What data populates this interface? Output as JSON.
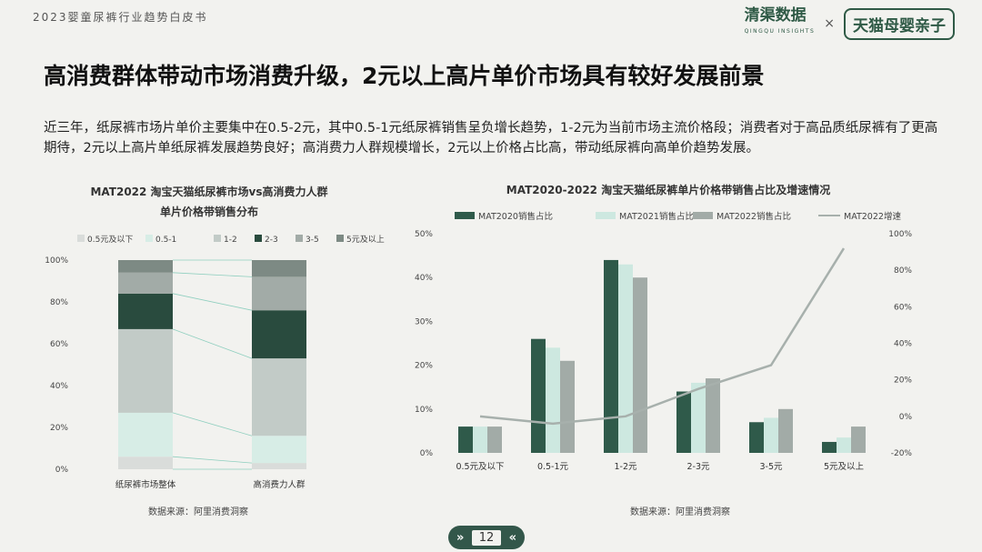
{
  "header": {
    "report_tag": "2023婴童尿裤行业趋势白皮书",
    "brand_left": "清渠数据",
    "brand_left_sub": "QINGQU INSIGHTS",
    "brand_sep": "×",
    "brand_right": "天猫母婴亲子"
  },
  "page": {
    "title": "高消费群体带动市场消费升级，2元以上高片单价市场具有较好发展前景",
    "description": "近三年，纸尿裤市场片单价主要集中在0.5-2元，其中0.5-1元纸尿裤销售呈负增长趋势，1-2元为当前市场主流价格段；消费者对于高品质纸尿裤有了更高期待，2元以上高片单纸尿裤发展趋势良好；高消费力人群规模增长，2元以上价格占比高，带动纸尿裤向高单价趋势发展。",
    "page_number": "12",
    "pager_prev": "»",
    "pager_next": "«"
  },
  "chart_data": [
    {
      "type": "bar",
      "stacked": true,
      "title": "MAT2022 淘宝天猫纸尿裤市场vs高消费力人群\n单片价格带销售分布",
      "title_lines": [
        "MAT2022 淘宝天猫纸尿裤市场vs高消费力人群",
        "单片价格带销售分布"
      ],
      "categories": [
        "纸尿裤市场整体",
        "高消费力人群"
      ],
      "series": [
        {
          "name": "0.5元及以下",
          "color": "#d9dcda",
          "values": [
            6,
            3
          ]
        },
        {
          "name": "0.5-1",
          "color": "#d7ede6",
          "values": [
            21,
            13
          ]
        },
        {
          "name": "1-2",
          "color": "#c2cbc7",
          "values": [
            40,
            37
          ]
        },
        {
          "name": "2-3",
          "color": "#294b3e",
          "values": [
            17,
            23
          ]
        },
        {
          "name": "3-5",
          "color": "#a2aba7",
          "values": [
            10,
            16
          ]
        },
        {
          "name": "5元及以上",
          "color": "#7d8a84",
          "values": [
            6,
            8
          ]
        }
      ],
      "y_ticks": [
        "0%",
        "20%",
        "40%",
        "60%",
        "80%",
        "100%"
      ],
      "ylim": [
        0,
        100
      ],
      "legend_position": "top",
      "source": "数据来源：阿里消费洞察"
    },
    {
      "type": "bar",
      "title": "MAT2020-2022 淘宝天猫纸尿裤单片价格带销售占比及增速情况",
      "categories": [
        "0.5元及以下",
        "0.5-1元",
        "1-2元",
        "2-3元",
        "3-5元",
        "5元及以上"
      ],
      "series": [
        {
          "name": "MAT2020销售占比",
          "type": "bar",
          "axis": "left",
          "color": "#2f5a4a",
          "values": [
            6,
            26,
            44,
            14,
            7,
            2.5
          ]
        },
        {
          "name": "MAT2021销售占比",
          "type": "bar",
          "axis": "left",
          "color": "#cde8e0",
          "values": [
            6,
            24,
            43,
            16,
            8,
            3.5
          ]
        },
        {
          "name": "MAT2022销售占比",
          "type": "bar",
          "axis": "left",
          "color": "#a2aba7",
          "values": [
            6,
            21,
            40,
            17,
            10,
            6
          ]
        },
        {
          "name": "MAT2022增速",
          "type": "line",
          "axis": "right",
          "color": "#a7b0ac",
          "values": [
            0,
            -4,
            0,
            15,
            28,
            92
          ]
        }
      ],
      "y_ticks_left": [
        "0%",
        "10%",
        "20%",
        "30%",
        "40%",
        "50%"
      ],
      "ylim_left": [
        0,
        50
      ],
      "y_ticks_right": [
        "-20%",
        "0%",
        "20%",
        "40%",
        "60%",
        "80%",
        "100%"
      ],
      "ylim_right": [
        -20,
        100
      ],
      "legend_position": "top",
      "source": "数据来源：阿里消费洞察"
    }
  ]
}
